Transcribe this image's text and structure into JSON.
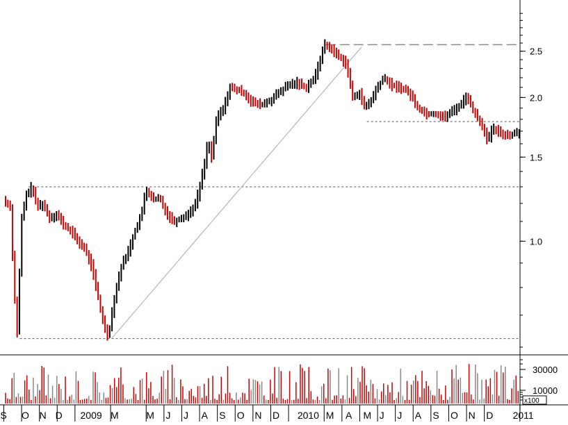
{
  "chart_data": {
    "type": "candlestick",
    "price_axis": {
      "scale": "log",
      "ticks": [
        "1.0",
        "1.5",
        "2.0",
        "2.5"
      ],
      "tick_values": [
        1.0,
        1.5,
        2.0,
        2.5
      ],
      "range": [
        0.58,
        3.2
      ]
    },
    "volume_axis": {
      "scale": "log",
      "ticks": [
        "10000",
        "30000"
      ],
      "tick_values": [
        10000,
        30000
      ],
      "multiplier_label": "x100",
      "range": [
        5000,
        60000
      ]
    },
    "x_labels": [
      "S",
      "O",
      "N",
      "D",
      "2009",
      "M",
      "M",
      "J",
      "J",
      "A",
      "S",
      "O",
      "N",
      "D",
      "2010",
      "M",
      "A",
      "M",
      "J",
      "J",
      "A",
      "S",
      "O",
      "N",
      "D",
      "2011"
    ],
    "x_label_positions": [
      -0.3,
      0.9,
      1.9,
      2.8,
      4.2,
      5.9,
      7.9,
      9.0,
      10.0,
      11.0,
      12.0,
      13.0,
      14.0,
      15.0,
      16.4,
      18.0,
      19.1,
      20.1,
      21.0,
      22.0,
      23.0,
      24.0,
      25.0,
      26.0,
      27.0,
      28.5
    ],
    "price_path": [
      [
        0.0,
        1.22
      ],
      [
        0.4,
        1.18
      ],
      [
        0.6,
        0.8
      ],
      [
        0.8,
        0.63
      ],
      [
        1.0,
        1.1
      ],
      [
        1.3,
        1.25
      ],
      [
        1.6,
        1.3
      ],
      [
        1.9,
        1.18
      ],
      [
        2.2,
        1.2
      ],
      [
        2.6,
        1.12
      ],
      [
        3.0,
        1.14
      ],
      [
        3.4,
        1.08
      ],
      [
        3.8,
        1.05
      ],
      [
        4.2,
        1.0
      ],
      [
        4.6,
        0.96
      ],
      [
        5.0,
        0.88
      ],
      [
        5.3,
        0.77
      ],
      [
        5.6,
        0.68
      ],
      [
        5.9,
        0.63
      ],
      [
        6.2,
        0.75
      ],
      [
        6.6,
        0.88
      ],
      [
        7.0,
        0.95
      ],
      [
        7.4,
        1.05
      ],
      [
        7.8,
        1.15
      ],
      [
        8.0,
        1.29
      ],
      [
        8.4,
        1.22
      ],
      [
        8.8,
        1.23
      ],
      [
        9.2,
        1.14
      ],
      [
        9.6,
        1.1
      ],
      [
        10.0,
        1.12
      ],
      [
        10.4,
        1.14
      ],
      [
        10.8,
        1.2
      ],
      [
        11.0,
        1.28
      ],
      [
        11.3,
        1.45
      ],
      [
        11.5,
        1.63
      ],
      [
        11.7,
        1.5
      ],
      [
        12.0,
        1.82
      ],
      [
        12.4,
        1.9
      ],
      [
        12.7,
        2.1
      ],
      [
        13.0,
        2.08
      ],
      [
        13.5,
        2.05
      ],
      [
        14.0,
        1.95
      ],
      [
        14.5,
        1.93
      ],
      [
        15.0,
        1.97
      ],
      [
        15.5,
        2.05
      ],
      [
        16.0,
        2.12
      ],
      [
        16.5,
        2.15
      ],
      [
        17.0,
        2.1
      ],
      [
        17.5,
        2.2
      ],
      [
        17.8,
        2.4
      ],
      [
        18.0,
        2.58
      ],
      [
        18.3,
        2.55
      ],
      [
        18.8,
        2.45
      ],
      [
        19.3,
        2.35
      ],
      [
        19.6,
        2.0
      ],
      [
        20.0,
        2.05
      ],
      [
        20.3,
        1.9
      ],
      [
        20.7,
        1.98
      ],
      [
        21.0,
        2.1
      ],
      [
        21.4,
        2.2
      ],
      [
        21.8,
        2.12
      ],
      [
        22.3,
        2.1
      ],
      [
        22.8,
        2.05
      ],
      [
        23.3,
        1.9
      ],
      [
        23.8,
        1.85
      ],
      [
        24.3,
        1.85
      ],
      [
        24.8,
        1.82
      ],
      [
        25.3,
        1.88
      ],
      [
        25.8,
        1.95
      ],
      [
        26.0,
        2.02
      ],
      [
        26.4,
        1.88
      ],
      [
        26.7,
        1.8
      ],
      [
        27.0,
        1.72
      ],
      [
        27.2,
        1.62
      ],
      [
        27.5,
        1.72
      ],
      [
        28.0,
        1.68
      ],
      [
        28.5,
        1.67
      ],
      [
        29.0,
        1.7
      ],
      [
        29.3,
        1.72
      ],
      [
        29.5,
        1.62
      ]
    ],
    "horizontal_levels": [
      {
        "value": 0.625,
        "from": 0.8,
        "to": 29.5,
        "style": "dotted"
      },
      {
        "value": 1.3,
        "from": 1.3,
        "to": 29.5,
        "style": "dotted"
      },
      {
        "value": 1.78,
        "from": 20.3,
        "to": 29.5,
        "style": "dotted"
      },
      {
        "value": 2.58,
        "from": 18.0,
        "to": 29.5,
        "style": "dashed"
      }
    ],
    "trendline": {
      "from": [
        5.95,
        0.625
      ],
      "to": [
        20.0,
        2.55
      ]
    },
    "legend": "none",
    "grid": false
  },
  "colors": {
    "up": "#000000",
    "down": "#cc0000",
    "volume_down": "#cc0000",
    "volume_up": "#888888",
    "levels": "#555555",
    "trendline": "#aaaaaa",
    "axis": "#000000"
  }
}
